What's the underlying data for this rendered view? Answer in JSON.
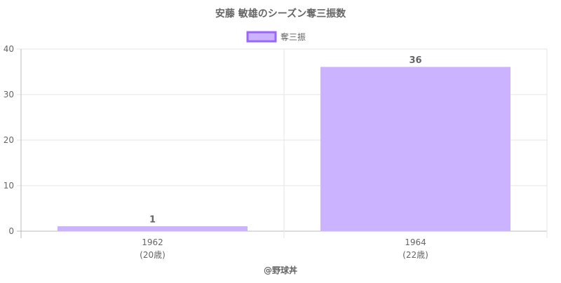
{
  "chart_data": {
    "type": "bar",
    "title": "安藤 敏雄のシーズン奪三振数",
    "categories": [
      {
        "year": "1962",
        "age": "(20歳)"
      },
      {
        "year": "1964",
        "age": "(22歳)"
      }
    ],
    "series": [
      {
        "name": "奪三振",
        "values": [
          1,
          36
        ]
      }
    ],
    "data_labels": [
      "1",
      "36"
    ],
    "ylim": [
      0,
      40
    ],
    "yticks": [
      "0",
      "10",
      "20",
      "30",
      "40"
    ],
    "grid": true,
    "legend": "top-center",
    "colors": {
      "bar_fill": "#cbb3ff",
      "bar_stroke": "#9966ff",
      "grid": "#e6e6e6",
      "axis": "#bbbbbb",
      "text": "#666666"
    }
  },
  "footer": {
    "credit": "@野球丼"
  }
}
